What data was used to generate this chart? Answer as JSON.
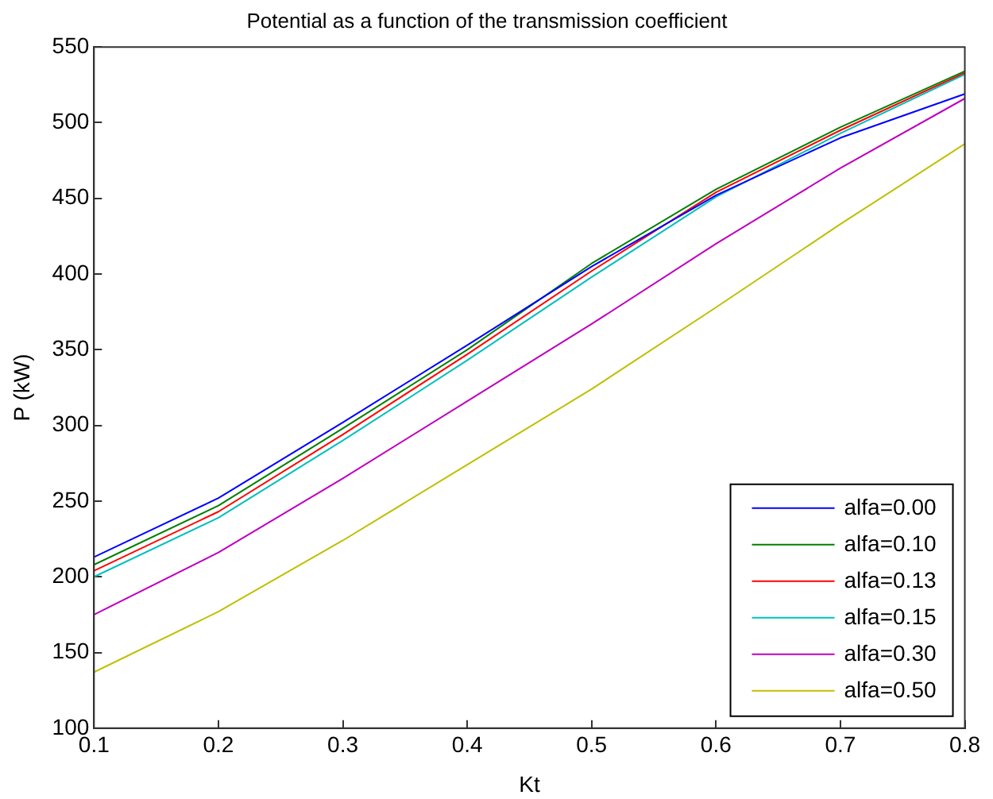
{
  "chart_data": {
    "type": "line",
    "title": "Potential as a function of the transmission coefficient",
    "xlabel": "Kt",
    "ylabel": "P (kW)",
    "x": [
      0.1,
      0.2,
      0.3,
      0.4,
      0.5,
      0.6,
      0.7,
      0.8
    ],
    "xlim": [
      0.1,
      0.8
    ],
    "xticks": [
      0.1,
      0.2,
      0.3,
      0.4,
      0.5,
      0.6,
      0.7,
      0.8
    ],
    "ylim": [
      100,
      550
    ],
    "yticks": [
      100,
      150,
      200,
      250,
      300,
      350,
      400,
      450,
      500,
      550
    ],
    "grid": false,
    "legend": "bottom right",
    "marker": "none",
    "line_style": "solid",
    "series": [
      {
        "name": "alfa=0.00",
        "color": "#0000ff",
        "values": [
          213,
          252,
          302,
          353,
          405,
          452,
          490,
          519
        ]
      },
      {
        "name": "alfa=0.10",
        "color": "#008000",
        "values": [
          208,
          247,
          298,
          350,
          407,
          456,
          497,
          534
        ]
      },
      {
        "name": "alfa=0.13",
        "color": "#ff0000",
        "values": [
          204,
          243,
          294,
          347,
          402,
          454,
          495,
          533
        ]
      },
      {
        "name": "alfa=0.15",
        "color": "#00bfbf",
        "values": [
          200,
          239,
          290,
          343,
          398,
          451,
          493,
          532
        ]
      },
      {
        "name": "alfa=0.30",
        "color": "#bf00bf",
        "values": [
          175,
          216,
          265,
          316,
          367,
          420,
          470,
          516
        ]
      },
      {
        "name": "alfa=0.50",
        "color": "#bfbf00",
        "values": [
          137,
          177,
          224,
          274,
          324,
          378,
          433,
          486
        ]
      }
    ]
  }
}
